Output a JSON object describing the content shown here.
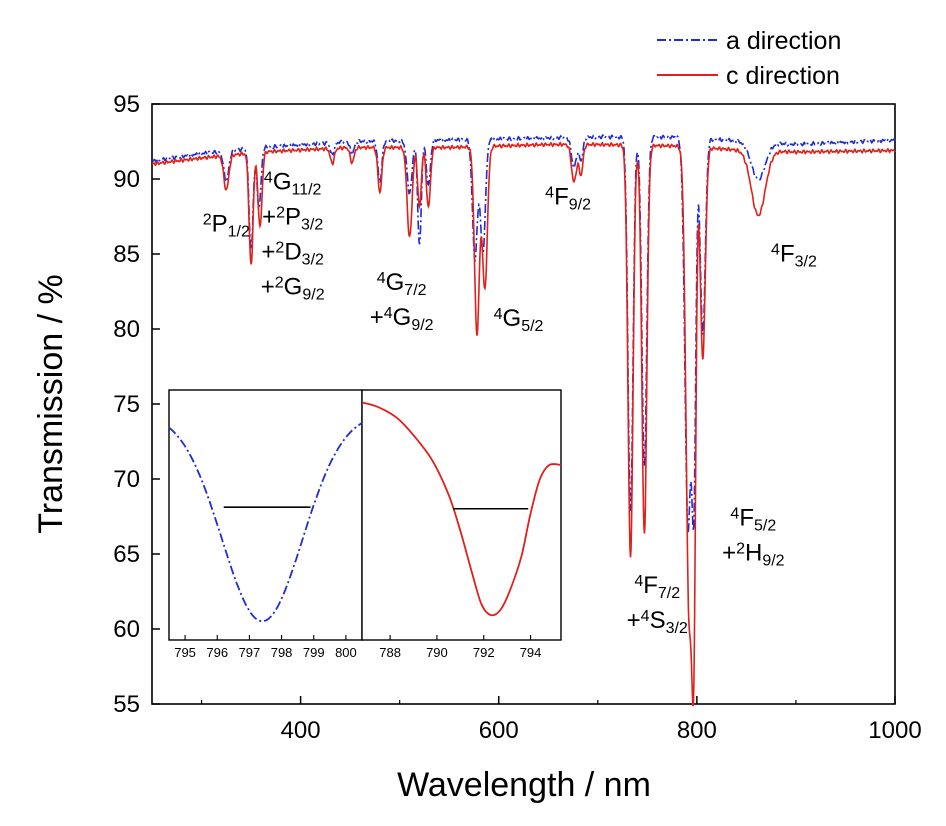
{
  "chart_data": {
    "type": "line",
    "xlabel": "Wavelength / nm",
    "ylabel": "Transmission / %",
    "xlim": [
      250,
      1000
    ],
    "ylim": [
      55,
      95
    ],
    "xticks": [
      400,
      600,
      800,
      1000
    ],
    "yticks": [
      55,
      60,
      65,
      70,
      75,
      80,
      85,
      90,
      95
    ],
    "grid": false,
    "legend_position": "top-right",
    "series": [
      {
        "name": "a direction",
        "color": "#1f2bd6",
        "style": "dash-dot",
        "baseline": [
          [
            250,
            91.2
          ],
          [
            300,
            91.7
          ],
          [
            360,
            92.1
          ],
          [
            450,
            92.5
          ],
          [
            550,
            92.6
          ],
          [
            700,
            92.8
          ],
          [
            780,
            92.8
          ],
          [
            850,
            92.5
          ],
          [
            900,
            92.3
          ],
          [
            1000,
            92.6
          ]
        ],
        "dips": [
          {
            "center": 325,
            "depth": 2.0,
            "width": 2.5
          },
          {
            "center": 350,
            "depth": 6.8,
            "width": 2.0
          },
          {
            "center": 358,
            "depth": 4.0,
            "width": 2.0
          },
          {
            "center": 432,
            "depth": 0.8,
            "width": 2.0
          },
          {
            "center": 452,
            "depth": 0.8,
            "width": 2.0
          },
          {
            "center": 480,
            "depth": 2.8,
            "width": 2.0
          },
          {
            "center": 510,
            "depth": 3.5,
            "width": 2.5
          },
          {
            "center": 520,
            "depth": 7.0,
            "width": 1.8
          },
          {
            "center": 529,
            "depth": 3.0,
            "width": 2.0
          },
          {
            "center": 576,
            "depth": 8.0,
            "width": 2.5
          },
          {
            "center": 584,
            "depth": 7.5,
            "width": 2.5
          },
          {
            "center": 676,
            "depth": 2.0,
            "width": 2.5
          },
          {
            "center": 683,
            "depth": 1.5,
            "width": 2.0
          },
          {
            "center": 733,
            "depth": 25.0,
            "width": 2.5
          },
          {
            "center": 747,
            "depth": 22.0,
            "width": 2.5
          },
          {
            "center": 791,
            "depth": 26.0,
            "width": 3.0
          },
          {
            "center": 797,
            "depth": 22.0,
            "width": 2.0
          },
          {
            "center": 806,
            "depth": 13.0,
            "width": 2.5
          },
          {
            "center": 862,
            "depth": 2.5,
            "width": 7.0
          }
        ]
      },
      {
        "name": "c direction",
        "color": "#e0201a",
        "style": "solid",
        "baseline": [
          [
            250,
            91.0
          ],
          [
            300,
            91.4
          ],
          [
            360,
            91.8
          ],
          [
            450,
            92.1
          ],
          [
            550,
            92.1
          ],
          [
            650,
            92.3
          ],
          [
            700,
            92.3
          ],
          [
            780,
            92.2
          ],
          [
            850,
            91.9
          ],
          [
            900,
            91.8
          ],
          [
            1000,
            91.9
          ]
        ],
        "dips": [
          {
            "center": 325,
            "depth": 2.3,
            "width": 2.5
          },
          {
            "center": 350,
            "depth": 7.5,
            "width": 2.0
          },
          {
            "center": 359,
            "depth": 5.0,
            "width": 2.0
          },
          {
            "center": 432,
            "depth": 1.0,
            "width": 2.0
          },
          {
            "center": 452,
            "depth": 1.0,
            "width": 2.0
          },
          {
            "center": 480,
            "depth": 3.0,
            "width": 2.0
          },
          {
            "center": 510,
            "depth": 6.0,
            "width": 2.5
          },
          {
            "center": 520,
            "depth": 4.0,
            "width": 1.8
          },
          {
            "center": 529,
            "depth": 4.0,
            "width": 2.0
          },
          {
            "center": 578,
            "depth": 12.5,
            "width": 2.5
          },
          {
            "center": 586,
            "depth": 9.5,
            "width": 2.5
          },
          {
            "center": 676,
            "depth": 2.5,
            "width": 2.5
          },
          {
            "center": 683,
            "depth": 2.0,
            "width": 2.0
          },
          {
            "center": 733,
            "depth": 27.5,
            "width": 2.5
          },
          {
            "center": 747,
            "depth": 26.0,
            "width": 2.5
          },
          {
            "center": 792,
            "depth": 30.5,
            "width": 3.0
          },
          {
            "center": 797,
            "depth": 28.0,
            "width": 2.0
          },
          {
            "center": 806,
            "depth": 14.0,
            "width": 2.5
          },
          {
            "center": 862,
            "depth": 4.3,
            "width": 7.0
          }
        ]
      }
    ],
    "annotations": [
      {
        "id": "p12",
        "lines": [
          [
            {
              "sup": "2"
            },
            {
              "t": "P"
            },
            {
              "sub": "1/2"
            }
          ]
        ],
        "x": 325,
        "y": 86.5
      },
      {
        "id": "g112",
        "lines": [
          [
            {
              "sup": "4"
            },
            {
              "t": "G"
            },
            {
              "sub": "11/2"
            }
          ],
          [
            {
              "t": "+"
            },
            {
              "sup": "2"
            },
            {
              "t": "P"
            },
            {
              "sub": "3/2"
            }
          ],
          [
            {
              "t": "+"
            },
            {
              "sup": "2"
            },
            {
              "t": "D"
            },
            {
              "sub": "3/2"
            }
          ],
          [
            {
              "t": "+"
            },
            {
              "sup": "2"
            },
            {
              "t": "G"
            },
            {
              "sub": "9/2"
            }
          ]
        ],
        "x": 392,
        "y": 89.3
      },
      {
        "id": "g72",
        "lines": [
          [
            {
              "sup": "4"
            },
            {
              "t": "G"
            },
            {
              "sub": "7/2"
            }
          ],
          [
            {
              "t": "+"
            },
            {
              "sup": "4"
            },
            {
              "t": "G"
            },
            {
              "sub": "9/2"
            }
          ]
        ],
        "x": 502,
        "y": 82.6
      },
      {
        "id": "g52",
        "lines": [
          [
            {
              "sup": "4"
            },
            {
              "t": "G"
            },
            {
              "sub": "5/2"
            }
          ]
        ],
        "x": 620,
        "y": 80.2
      },
      {
        "id": "f92",
        "lines": [
          [
            {
              "sup": "4"
            },
            {
              "t": "F"
            },
            {
              "sub": "9/2"
            }
          ]
        ],
        "x": 670,
        "y": 88.3
      },
      {
        "id": "f32",
        "lines": [
          [
            {
              "sup": "4"
            },
            {
              "t": "F"
            },
            {
              "sub": "3/2"
            }
          ]
        ],
        "x": 898,
        "y": 84.5
      },
      {
        "id": "f52",
        "lines": [
          [
            {
              "sup": "4"
            },
            {
              "t": "F"
            },
            {
              "sub": "5/2"
            }
          ],
          [
            {
              "t": "+"
            },
            {
              "sup": "2"
            },
            {
              "t": "H"
            },
            {
              "sub": "9/2"
            }
          ]
        ],
        "x": 857,
        "y": 66.9
      },
      {
        "id": "f72",
        "lines": [
          [
            {
              "sup": "4"
            },
            {
              "t": "F"
            },
            {
              "sub": "7/2"
            }
          ],
          [
            {
              "t": "+"
            },
            {
              "sup": "4"
            },
            {
              "t": "S"
            },
            {
              "sub": "3/2"
            }
          ]
        ],
        "x": 760,
        "y": 62.4
      }
    ],
    "insets": [
      {
        "id": "inset-a",
        "series": "a direction",
        "color": "#1f2bd6",
        "style": "dash-dot",
        "xlim": [
          794.5,
          800.5
        ],
        "xticks": [
          795,
          796,
          797,
          798,
          799,
          800
        ],
        "ylim": [
          59.5,
          75.5
        ],
        "curve": {
          "type": "gaussian",
          "center": 797.4,
          "min": 60.7,
          "max": 74.0,
          "sigma": 1.25
        },
        "fwhm_line": {
          "x1": 796.2,
          "x2": 798.9,
          "y": 68.0
        }
      },
      {
        "id": "inset-c",
        "series": "c direction",
        "color": "#e0201a",
        "style": "solid",
        "xlim": [
          786.8,
          795.3
        ],
        "xticks": [
          788,
          790,
          792,
          794
        ],
        "ylim": [
          59.5,
          75.5
        ],
        "curve": {
          "type": "points",
          "points": [
            [
              786.8,
              74.7
            ],
            [
              787.5,
              74.4
            ],
            [
              788.3,
              73.7
            ],
            [
              789.0,
              72.6
            ],
            [
              789.8,
              71.0
            ],
            [
              790.5,
              68.8
            ],
            [
              791.0,
              66.5
            ],
            [
              791.5,
              63.8
            ],
            [
              791.9,
              61.8
            ],
            [
              792.3,
              61.1
            ],
            [
              792.7,
              61.4
            ],
            [
              793.1,
              62.6
            ],
            [
              793.6,
              64.8
            ],
            [
              794.0,
              67.6
            ],
            [
              794.4,
              69.8
            ],
            [
              794.8,
              70.7
            ],
            [
              795.3,
              70.7
            ]
          ]
        },
        "fwhm_line": {
          "x1": 790.7,
          "x2": 793.9,
          "y": 67.9
        }
      }
    ]
  }
}
